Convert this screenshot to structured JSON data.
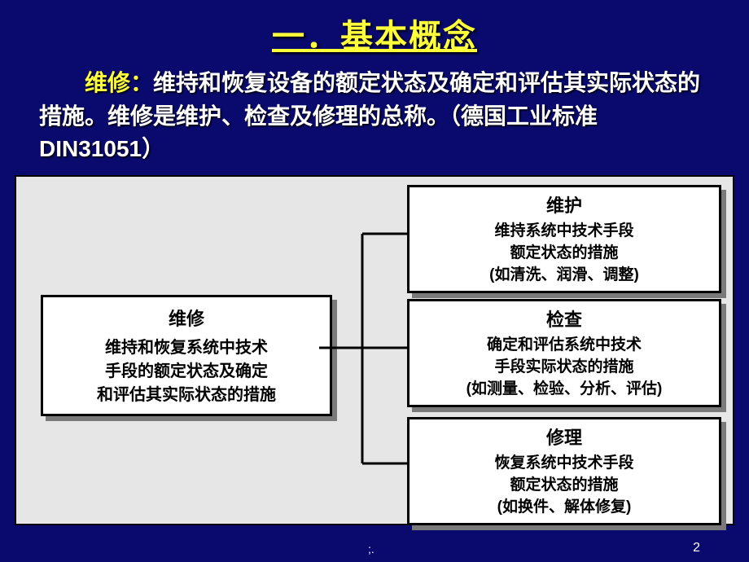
{
  "title": "一．基本概念",
  "intro_kw": "维修：",
  "intro_text": "维持和恢复设备的额定状态及确定和评估其实际状态的措施。维修是维护、检查及修理的总称。（德国工业标准 DIN31051）",
  "diagram": {
    "type": "flowchart",
    "box_bg": "#ffffff",
    "box_border": "#000000",
    "box_shadow": "#7a7a7a",
    "panel_bg": "#e6e6e6",
    "line_color": "#000000",
    "line_width": 3,
    "title_fontsize": 22,
    "body_fontsize": 20,
    "left": {
      "title": "维修",
      "body": "维持和恢复系统中技术\n手段的额定状态及确定\n和评估其实际状态的措施"
    },
    "right": [
      {
        "title": "维护",
        "body": "维持系统中技术手段\n额定状态的措施\n(如清洗、润滑、调整)"
      },
      {
        "title": "检查",
        "body": "确定和评估系统中技术\n手段实际状态的措施\n(如测量、检验、分析、评估)"
      },
      {
        "title": "修理",
        "body": "恢复系统中技术手段\n额定状态的措施\n(如换件、解体修复)"
      }
    ]
  },
  "footer_mark": ";.",
  "page_number": "2",
  "colors": {
    "slide_bg": "#0a0a6e",
    "title_color": "#ffff3a",
    "keyword_color": "#ffff3a",
    "body_text": "#ffffff"
  }
}
